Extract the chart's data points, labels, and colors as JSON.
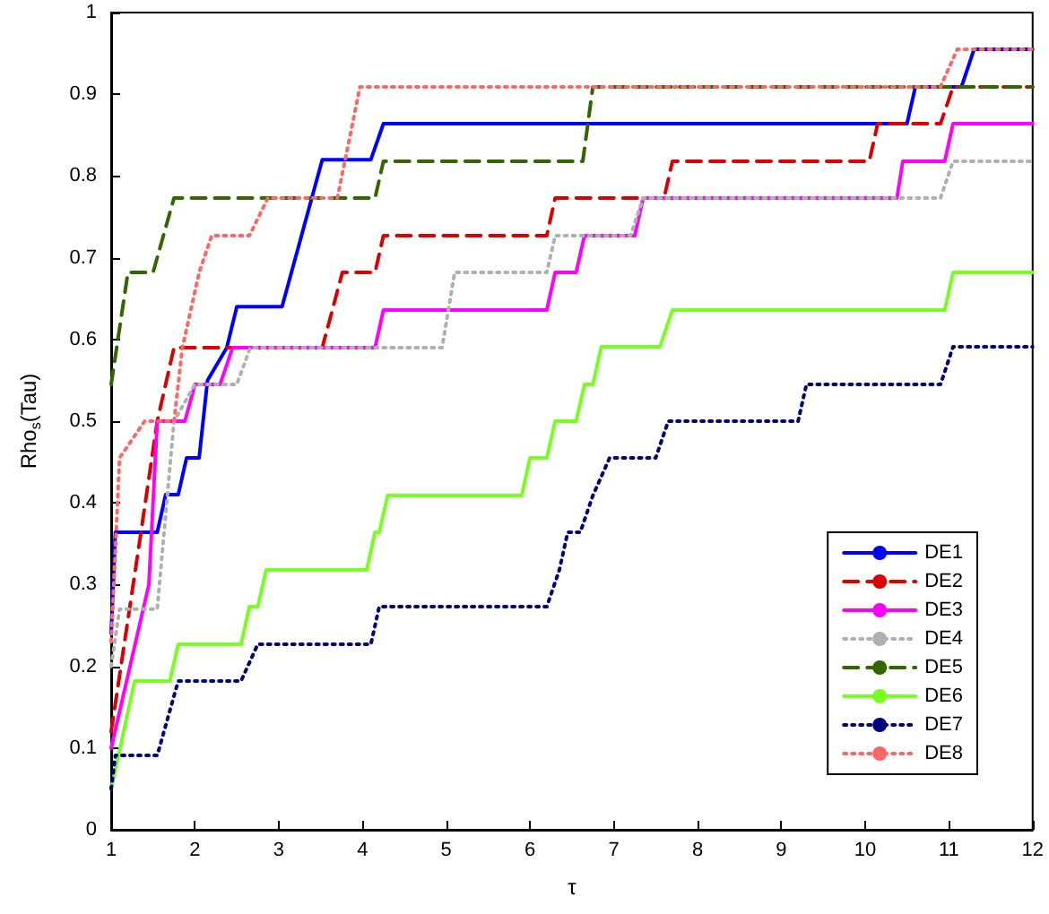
{
  "chart_data": {
    "type": "line",
    "xlabel": "τ",
    "ylabel": "Rho$_{s}$(Tau)",
    "xlim": [
      1,
      12
    ],
    "xticks": [
      1,
      2,
      3,
      4,
      5,
      6,
      7,
      8,
      9,
      10,
      11,
      12
    ],
    "ylim": [
      0,
      1
    ],
    "yticks": [
      0,
      0.1,
      0.2,
      0.3,
      0.4,
      0.5,
      0.6,
      0.7,
      0.8,
      0.9,
      1
    ],
    "grid": false,
    "legend": "bottom right",
    "marker": "none",
    "series": [
      {
        "name": "DE1",
        "color": "#0000ff",
        "line_style": "solid",
        "x": [
          1,
          1.05,
          1.55,
          1.65,
          1.8,
          1.9,
          2.05,
          2.15,
          2.38,
          2.5,
          3.04,
          3.52,
          4.1,
          4.25,
          10.5,
          10.6,
          11.15,
          11.3,
          12
        ],
        "values": [
          0.24,
          0.364,
          0.364,
          0.41,
          0.41,
          0.455,
          0.455,
          0.55,
          0.59,
          0.64,
          0.64,
          0.82,
          0.82,
          0.864,
          0.864,
          0.909,
          0.909,
          0.955,
          0.955
        ]
      },
      {
        "name": "DE2",
        "color": "#dd0000",
        "line_style": "dashed",
        "x": [
          1,
          1.35,
          1.55,
          1.75,
          3.52,
          3.76,
          4.15,
          4.25,
          6.2,
          6.3,
          7.6,
          7.7,
          10.05,
          10.15,
          10.9,
          11.05,
          12
        ],
        "values": [
          0.12,
          0.36,
          0.5,
          0.59,
          0.59,
          0.682,
          0.682,
          0.727,
          0.727,
          0.773,
          0.773,
          0.818,
          0.818,
          0.864,
          0.864,
          0.909,
          0.909
        ]
      },
      {
        "name": "DE3",
        "color": "#ff00ff",
        "line_style": "solid",
        "x": [
          1,
          1.45,
          1.55,
          1.88,
          2.0,
          2.3,
          2.45,
          4.15,
          4.25,
          6.2,
          6.3,
          6.55,
          6.65,
          7.25,
          7.35,
          10.38,
          10.45,
          10.95,
          11.05,
          12
        ],
        "values": [
          0.1,
          0.3,
          0.5,
          0.5,
          0.545,
          0.545,
          0.59,
          0.59,
          0.636,
          0.636,
          0.682,
          0.682,
          0.727,
          0.727,
          0.773,
          0.773,
          0.818,
          0.818,
          0.864,
          0.864
        ]
      },
      {
        "name": "DE4",
        "color": "#b0b0b0",
        "line_style": "dotted",
        "x": [
          1,
          1.1,
          1.55,
          1.75,
          2.0,
          2.5,
          2.66,
          4.95,
          5.1,
          6.2,
          6.3,
          7.2,
          7.35,
          10.9,
          11.05,
          12
        ],
        "values": [
          0.2,
          0.27,
          0.27,
          0.5,
          0.545,
          0.545,
          0.59,
          0.59,
          0.682,
          0.682,
          0.727,
          0.727,
          0.773,
          0.773,
          0.818,
          0.818
        ]
      },
      {
        "name": "DE5",
        "color": "#336600",
        "line_style": "dashed",
        "x": [
          1,
          1.2,
          1.5,
          1.75,
          4.15,
          4.25,
          6.63,
          6.75,
          12
        ],
        "values": [
          0.545,
          0.682,
          0.682,
          0.773,
          0.773,
          0.818,
          0.818,
          0.909,
          0.909
        ]
      },
      {
        "name": "DE6",
        "color": "#77ff22",
        "line_style": "solid",
        "x": [
          1,
          1.28,
          1.7,
          1.8,
          2.55,
          2.65,
          2.75,
          2.85,
          4.05,
          4.15,
          4.2,
          4.3,
          5.9,
          6.0,
          6.2,
          6.3,
          6.55,
          6.65,
          6.75,
          6.85,
          7.55,
          7.7,
          10.95,
          11.05,
          12
        ],
        "values": [
          0.05,
          0.182,
          0.182,
          0.227,
          0.227,
          0.273,
          0.273,
          0.318,
          0.318,
          0.364,
          0.364,
          0.409,
          0.409,
          0.455,
          0.455,
          0.5,
          0.5,
          0.545,
          0.545,
          0.591,
          0.591,
          0.636,
          0.636,
          0.682,
          0.682
        ]
      },
      {
        "name": "DE7",
        "color": "#000080",
        "line_style": "dotted",
        "x": [
          1,
          1.05,
          1.55,
          1.8,
          2.55,
          2.75,
          4.1,
          4.2,
          6.2,
          6.35,
          6.45,
          6.6,
          6.75,
          6.95,
          7.5,
          7.65,
          9.2,
          9.3,
          10.9,
          11.05,
          12
        ],
        "values": [
          0.05,
          0.091,
          0.091,
          0.182,
          0.182,
          0.227,
          0.227,
          0.273,
          0.273,
          0.318,
          0.364,
          0.364,
          0.409,
          0.455,
          0.455,
          0.5,
          0.5,
          0.545,
          0.545,
          0.591,
          0.591
        ]
      },
      {
        "name": "DE8",
        "color": "#ff6666",
        "line_style": "dotted",
        "x": [
          1,
          1.1,
          1.4,
          1.75,
          1.85,
          2.05,
          2.2,
          2.65,
          2.87,
          3.7,
          3.97,
          10.9,
          11.1,
          12
        ],
        "values": [
          0.23,
          0.455,
          0.5,
          0.5,
          0.59,
          0.682,
          0.727,
          0.727,
          0.773,
          0.773,
          0.909,
          0.909,
          0.955,
          0.955
        ]
      }
    ]
  }
}
